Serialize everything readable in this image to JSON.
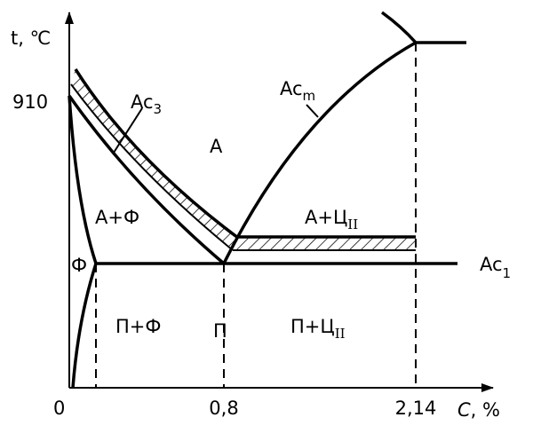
{
  "axes": {
    "y_label": "t, ℃",
    "x_label_var": "C",
    "x_label_unit": ", %",
    "y_tick": "910",
    "x_ticks": [
      "0",
      "0,8",
      "2,14"
    ]
  },
  "lines": {
    "ac3": {
      "text": "Ac",
      "sub": "3"
    },
    "acm": {
      "text": "Ac",
      "sub": "m"
    },
    "ac1": {
      "text": "Ac",
      "sub": "1"
    }
  },
  "regions": {
    "austenite": "A",
    "austenite_ferrite": "A+Ф",
    "austenite_cementite": {
      "text": "A+Ц",
      "sub": "II"
    },
    "ferrite": "Ф",
    "pearlite_ferrite": "П+Ф",
    "pearlite": "П",
    "pearlite_cementite": {
      "text": "П+Ц",
      "sub": "II"
    }
  }
}
